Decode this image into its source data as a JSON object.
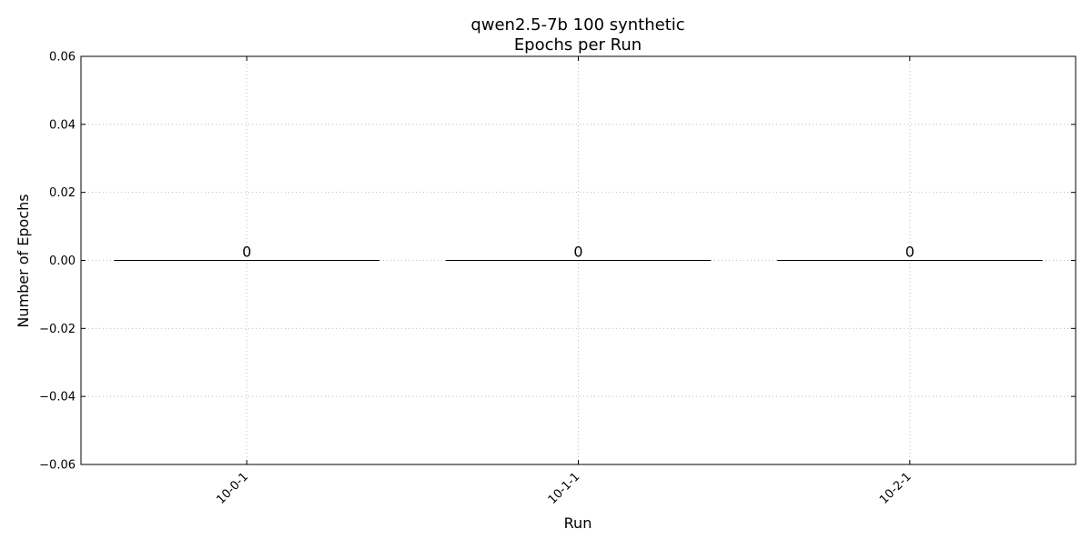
{
  "chart_data": {
    "type": "bar",
    "title": "qwen2.5-7b 100 synthetic\nEpochs per Run",
    "title_lines": [
      "qwen2.5-7b 100 synthetic",
      "Epochs per Run"
    ],
    "xlabel": "Run",
    "ylabel": "Number of Epochs",
    "categories": [
      "10-0-1",
      "10-1-1",
      "10-2-1"
    ],
    "values": [
      0,
      0,
      0
    ],
    "data_labels": [
      "0",
      "0",
      "0"
    ],
    "ylim": [
      -0.06,
      0.06
    ],
    "yticks": [
      -0.06,
      -0.04,
      -0.02,
      0.0,
      0.02,
      0.04,
      0.06
    ],
    "ytick_labels": [
      "−0.06",
      "−0.04",
      "−0.02",
      "0.00",
      "0.02",
      "0.04",
      "0.06"
    ],
    "grid": true,
    "grid_style": "dotted",
    "bar_color": "#1f77b4",
    "bar_edge_color": "#000000",
    "xtick_rotation_deg": 45
  }
}
